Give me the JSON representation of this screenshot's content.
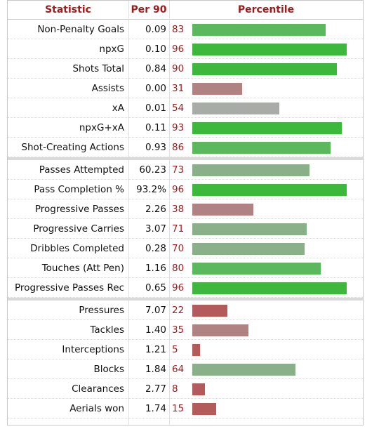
{
  "header": {
    "statistic": "Statistic",
    "per90": "Per 90",
    "percentile": "Percentile"
  },
  "colors": {
    "high": "#3db83d",
    "mid_high": "#5cb85c",
    "mid": "#8ab08a",
    "neutral": "#a7aca7",
    "low": "#b08282",
    "very_low": "#b35a5a"
  },
  "groups": [
    {
      "rows": [
        {
          "stat": "Non-Penalty Goals",
          "per90": "0.09",
          "percentile": 83
        },
        {
          "stat": "npxG",
          "per90": "0.10",
          "percentile": 96
        },
        {
          "stat": "Shots Total",
          "per90": "0.84",
          "percentile": 90
        },
        {
          "stat": "Assists",
          "per90": "0.00",
          "percentile": 31
        },
        {
          "stat": "xA",
          "per90": "0.01",
          "percentile": 54
        },
        {
          "stat": "npxG+xA",
          "per90": "0.11",
          "percentile": 93
        },
        {
          "stat": "Shot-Creating Actions",
          "per90": "0.93",
          "percentile": 86
        }
      ]
    },
    {
      "rows": [
        {
          "stat": "Passes Attempted",
          "per90": "60.23",
          "percentile": 73
        },
        {
          "stat": "Pass Completion %",
          "per90": "93.2%",
          "percentile": 96
        },
        {
          "stat": "Progressive Passes",
          "per90": "2.26",
          "percentile": 38
        },
        {
          "stat": "Progressive Carries",
          "per90": "3.07",
          "percentile": 71
        },
        {
          "stat": "Dribbles Completed",
          "per90": "0.28",
          "percentile": 70
        },
        {
          "stat": "Touches (Att Pen)",
          "per90": "1.16",
          "percentile": 80
        },
        {
          "stat": "Progressive Passes Rec",
          "per90": "0.65",
          "percentile": 96
        }
      ]
    },
    {
      "rows": [
        {
          "stat": "Pressures",
          "per90": "7.07",
          "percentile": 22
        },
        {
          "stat": "Tackles",
          "per90": "1.40",
          "percentile": 35
        },
        {
          "stat": "Interceptions",
          "per90": "1.21",
          "percentile": 5
        },
        {
          "stat": "Blocks",
          "per90": "1.84",
          "percentile": 64
        },
        {
          "stat": "Clearances",
          "per90": "2.77",
          "percentile": 8
        },
        {
          "stat": "Aerials won",
          "per90": "1.74",
          "percentile": 15
        }
      ]
    }
  ]
}
